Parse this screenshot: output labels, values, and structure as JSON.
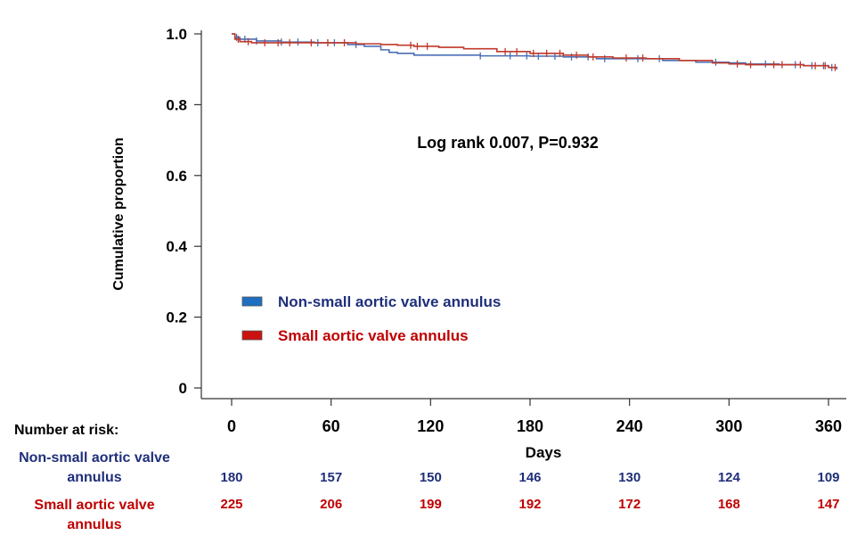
{
  "chart_data": {
    "type": "line",
    "xlabel": "Days",
    "ylabel": "Cumulative proportion",
    "xlim": [
      -15,
      370
    ],
    "ylim": [
      0,
      1.0
    ],
    "x_ticks": [
      "0",
      "60",
      "120",
      "180",
      "240",
      "300",
      "360"
    ],
    "y_ticks": [
      "0",
      "0.2",
      "0.4",
      "0.6",
      "0.8",
      "1.0"
    ],
    "annotation": "Log rank 0.007, P=0.932",
    "legend_position": "lower-left",
    "series": [
      {
        "name": "Non-small aortic valve annulus",
        "color": "#4a6fb5",
        "legend_color": "#1f6fc0",
        "x": [
          0,
          2,
          5,
          15,
          30,
          50,
          70,
          80,
          90,
          95,
          100,
          110,
          125,
          150,
          180,
          200,
          220,
          240,
          260,
          280,
          290,
          300,
          310,
          330,
          345,
          360,
          365
        ],
        "y": [
          1.0,
          0.99,
          0.985,
          0.98,
          0.977,
          0.975,
          0.97,
          0.965,
          0.955,
          0.948,
          0.945,
          0.94,
          0.94,
          0.938,
          0.937,
          0.935,
          0.93,
          0.93,
          0.925,
          0.92,
          0.92,
          0.918,
          0.915,
          0.913,
          0.91,
          0.905,
          0.9
        ],
        "censor_x": [
          3,
          8,
          15,
          30,
          40,
          52,
          62,
          75,
          150,
          168,
          178,
          185,
          195,
          205,
          215,
          225,
          245,
          258,
          292,
          322,
          340,
          350,
          357,
          362
        ],
        "at_risk": [
          "180",
          "157",
          "150",
          "146",
          "130",
          "124",
          "109"
        ]
      },
      {
        "name": "Small aortic valve annulus",
        "color": "#c0392b",
        "legend_color": "#cc1111",
        "x": [
          0,
          2,
          5,
          12,
          25,
          45,
          60,
          75,
          90,
          100,
          110,
          125,
          140,
          160,
          180,
          200,
          215,
          230,
          250,
          270,
          290,
          300,
          310,
          330,
          345,
          360,
          365
        ],
        "y": [
          1.0,
          0.985,
          0.978,
          0.975,
          0.975,
          0.975,
          0.975,
          0.972,
          0.97,
          0.968,
          0.965,
          0.962,
          0.958,
          0.95,
          0.945,
          0.94,
          0.935,
          0.932,
          0.93,
          0.925,
          0.918,
          0.915,
          0.913,
          0.913,
          0.91,
          0.905,
          0.905
        ],
        "censor_x": [
          4,
          10,
          20,
          28,
          35,
          48,
          58,
          68,
          108,
          112,
          118,
          165,
          172,
          182,
          190,
          198,
          208,
          218,
          238,
          248,
          305,
          313,
          327,
          332,
          343,
          352,
          358,
          364
        ],
        "at_risk": [
          "225",
          "206",
          "199",
          "192",
          "172",
          "168",
          "147"
        ]
      }
    ]
  },
  "risk_table": {
    "heading": "Number at risk:",
    "group1_label": "Non-small aortic valve annulus",
    "group2_label": "Small aortic valve annulus"
  }
}
